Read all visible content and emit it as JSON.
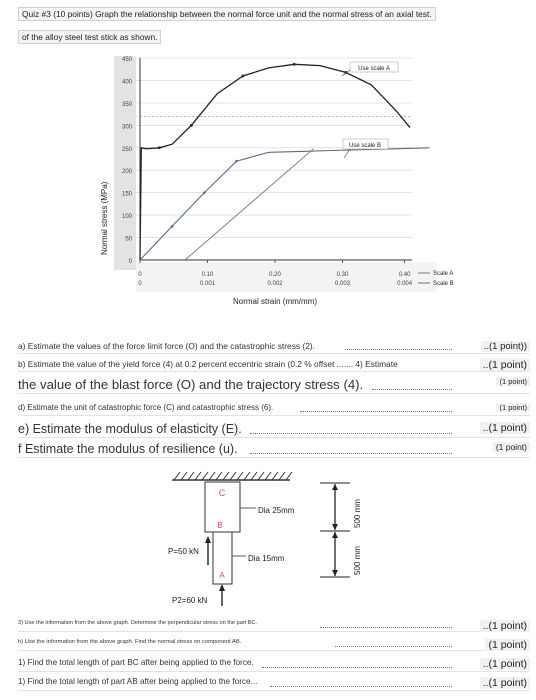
{
  "header": {
    "line1": "Quiz #3 (10 points) Graph the relationship between the normal force unit and the normal stress of an axial test.",
    "line2": "of the alloy steel test stick as shown."
  },
  "chart_data": {
    "type": "line",
    "ylabel": "Normal stress (MPa)",
    "xlabel": "Normal strain (mm/mm)",
    "y_ticks": [
      "450",
      "400",
      "350",
      "300",
      "250",
      "200",
      "150",
      "100",
      "50",
      "0"
    ],
    "ylim": [
      0,
      450
    ],
    "x_ticks_top": [
      "0",
      "0.10",
      "0.20",
      "0.30",
      "0.40"
    ],
    "x_ticks_bottom": [
      "0",
      "0.001",
      "0.002",
      "0.003",
      "0.004"
    ],
    "scale_a_label": "Use scale A",
    "scale_b_label": "Use scale B",
    "legend_a": "Scale A",
    "legend_b": "Scale B",
    "series": [
      {
        "name": "Scale A",
        "x": [
          0,
          0.002,
          0.01,
          0.03,
          0.05,
          0.08,
          0.12,
          0.16,
          0.2,
          0.24,
          0.28,
          0.32,
          0.36,
          0.4,
          0.42
        ],
        "y": [
          0,
          250,
          248,
          250,
          258,
          300,
          370,
          410,
          428,
          436,
          433,
          418,
          390,
          330,
          295
        ]
      },
      {
        "name": "Scale B",
        "x": [
          0,
          0.0005,
          0.001,
          0.0015,
          0.002,
          0.0025,
          0.003,
          0.0035,
          0.004,
          0.0045
        ],
        "y": [
          0,
          75,
          150,
          220,
          240,
          242,
          244,
          246,
          248,
          250
        ]
      }
    ]
  },
  "questions": [
    {
      "text": "a) Estimate the values of the force limit force (O) and the catastrophic stress (2).",
      "points": "..(1 point))"
    },
    {
      "text": "b) Estimate the value of the yield force (4) at 0.2 percent eccentric strain (0.2 % offset ....... 4) Estimate",
      "points": "..(1 point)"
    },
    {
      "text": "the value of the blast force (O) and the trajectory stress (4).",
      "points": "(1 point)"
    },
    {
      "text": "d) Estimate the unit of catastrophic force (C) and catastrophic stress (6).",
      "points": "(1 point)"
    },
    {
      "text": "e) Estimate the modulus of elasticity (E).",
      "points": "..(1 point)"
    },
    {
      "text": "f Estimate the modulus of resilience (u).",
      "points": "(1 point)"
    }
  ],
  "diagram": {
    "label_c": "C",
    "label_b": "B",
    "label_a": "A",
    "dia_top": "Dia 25mm",
    "dia_bottom": "Dia 15mm",
    "p1": "P=50 kN",
    "p2": "P2=60 kN",
    "dim_top": "500 mm",
    "dim_bottom": "500 mm"
  },
  "questions2": [
    {
      "text": "3) Use the information from the above graph. Determine the perpendicular stress on the part BC.",
      "points": "..(1 point)"
    },
    {
      "text": "h) Use the information from the above graph. Find the normal stress on component AB.",
      "points": "(1 point)"
    },
    {
      "text": "1) Find the total length of part BC after being applied to the force.",
      "points": "..(1 point)"
    },
    {
      "text": "1) Find the total length of part AB after being applied to the force...",
      "points": "..(1 point)"
    }
  ]
}
